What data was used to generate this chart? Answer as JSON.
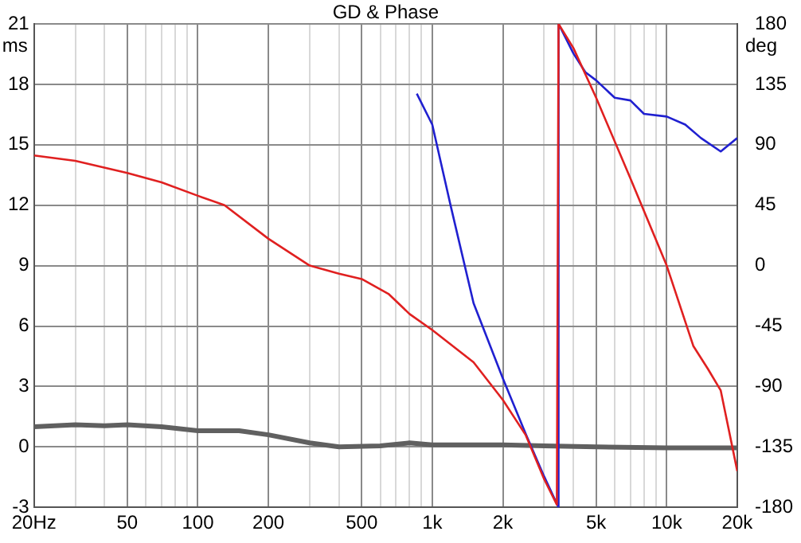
{
  "chart_data": {
    "type": "line",
    "title": "GD & Phase",
    "ylabel": "ms",
    "y2label": "deg",
    "log": "x",
    "grid": true,
    "legend": false,
    "xlim": [
      20,
      20000
    ],
    "xticks": [
      {
        "value": 20,
        "label": "20Hz"
      },
      {
        "value": 30,
        "label": null
      },
      {
        "value": 40,
        "label": null
      },
      50,
      {
        "value": 60,
        "label": null
      },
      {
        "value": 70,
        "label": null
      },
      {
        "value": 80,
        "label": null
      },
      {
        "value": 90,
        "label": null
      },
      100,
      200,
      {
        "value": 300,
        "label": null
      },
      {
        "value": 400,
        "label": null
      },
      500,
      {
        "value": 600,
        "label": null
      },
      {
        "value": 700,
        "label": null
      },
      {
        "value": 800,
        "label": null
      },
      {
        "value": 900,
        "label": null
      },
      {
        "value": 1000,
        "label": "1k"
      },
      {
        "value": 2000,
        "label": "2k"
      },
      {
        "value": 3000,
        "label": null
      },
      {
        "value": 4000,
        "label": null
      },
      {
        "value": 5000,
        "label": "5k"
      },
      {
        "value": 6000,
        "label": null
      },
      {
        "value": 7000,
        "label": null
      },
      {
        "value": 8000,
        "label": null
      },
      {
        "value": 9000,
        "label": null
      },
      {
        "value": 10000,
        "label": "10k"
      },
      {
        "value": 20000,
        "label": "20k"
      }
    ],
    "ylim": [
      -3,
      21
    ],
    "yticks": [
      -3,
      0,
      3,
      6,
      9,
      12,
      15,
      18,
      21
    ],
    "y2lim": [
      -180,
      180
    ],
    "y2ticks": [
      -180,
      -135,
      -90,
      -45,
      0,
      45,
      90,
      135,
      180
    ],
    "series": [
      {
        "color": "#e02020",
        "axis": "y2",
        "x": [
          20,
          30,
          50,
          70,
          100,
          130,
          200,
          300,
          400,
          500,
          650,
          800,
          1000,
          1500,
          2000,
          2500,
          3000,
          3400,
          3456,
          4000,
          5000,
          7000,
          10000,
          13000,
          15000,
          17000,
          20000
        ],
        "values": [
          82,
          78,
          69,
          62,
          52,
          45,
          20,
          0,
          -6,
          -10,
          -21,
          -36,
          -48,
          -72,
          -100,
          -126,
          -159,
          -178,
          180,
          162,
          125,
          65,
          0,
          -60,
          -77,
          -93,
          -153
        ]
      },
      {
        "color": "#2020d0",
        "axis": "y2",
        "x": [
          859,
          1000,
          1200,
          1500,
          2000,
          2500,
          3000,
          3456,
          3456,
          4000,
          4500,
          5000,
          6000,
          7000,
          8000,
          10000,
          12000,
          14000,
          17000,
          20000
        ],
        "values": [
          128,
          105,
          44,
          -28,
          -84,
          -125,
          -157,
          -180,
          180,
          158,
          144,
          138,
          125,
          123,
          113,
          111,
          105,
          95,
          85,
          95
        ]
      },
      {
        "color": "#606060",
        "x": [
          20,
          30,
          40,
          50,
          70,
          100,
          150,
          200,
          300,
          400,
          600,
          800,
          1000,
          1500,
          2000,
          3000,
          5000,
          10000,
          20000
        ],
        "values": [
          1.0,
          1.1,
          1.05,
          1.1,
          1.0,
          0.8,
          0.8,
          0.6,
          0.2,
          0.0,
          0.05,
          0.2,
          0.1,
          0.1,
          0.1,
          0.05,
          0.0,
          -0.05,
          -0.05
        ]
      }
    ]
  }
}
